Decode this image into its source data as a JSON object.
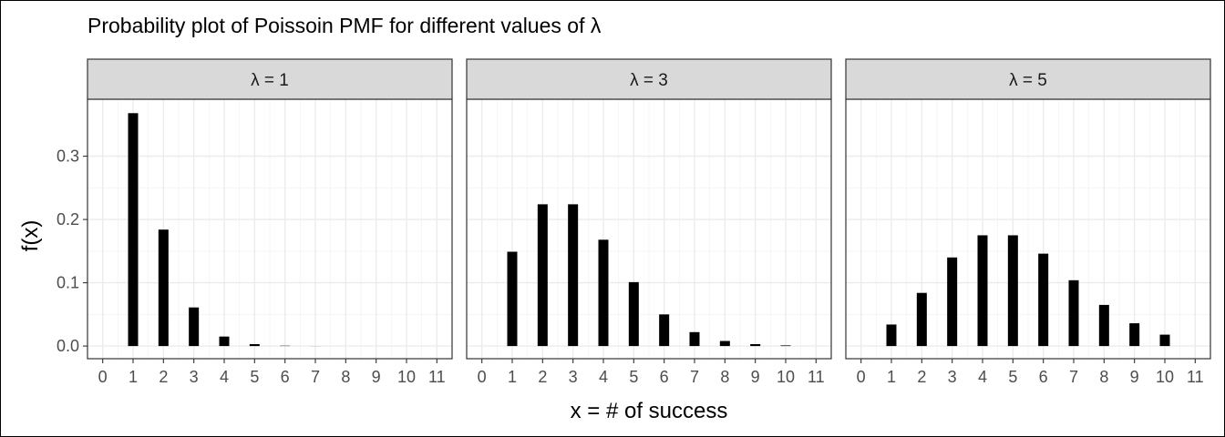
{
  "chart_data": {
    "type": "bar",
    "title": "Probability plot of Poissoin PMF for different values of λ",
    "xlabel": "x = # of success",
    "ylabel": "f(x)",
    "x": [
      0,
      1,
      2,
      3,
      4,
      5,
      6,
      7,
      8,
      9,
      10,
      11
    ],
    "xlim": [
      -0.5,
      11.5
    ],
    "ylim": [
      -0.02,
      0.39
    ],
    "yticks": [
      0.0,
      0.1,
      0.2,
      0.3
    ],
    "ytick_labels": [
      "0.0",
      "0.1",
      "0.2",
      "0.3"
    ],
    "grid": true,
    "colors": {
      "bar": "#000000",
      "strip_fill": "#d9d9d9",
      "panel_border": "#333333",
      "grid_major": "#ebebeb",
      "grid_minor": "#f5f5f5",
      "tick_label": "#4d4d4d"
    },
    "panels": [
      {
        "strip_label": "λ = 1",
        "x": [
          1,
          2,
          3,
          4,
          5,
          6,
          7,
          8,
          9,
          10
        ],
        "values": [
          0.368,
          0.184,
          0.061,
          0.015,
          0.003,
          0.0005,
          0.0001,
          0.0,
          0.0,
          0.0
        ]
      },
      {
        "strip_label": "λ = 3",
        "x": [
          1,
          2,
          3,
          4,
          5,
          6,
          7,
          8,
          9,
          10
        ],
        "values": [
          0.149,
          0.224,
          0.224,
          0.168,
          0.101,
          0.05,
          0.022,
          0.008,
          0.003,
          0.001
        ]
      },
      {
        "strip_label": "λ = 5",
        "x": [
          1,
          2,
          3,
          4,
          5,
          6,
          7,
          8,
          9,
          10
        ],
        "values": [
          0.034,
          0.084,
          0.14,
          0.175,
          0.175,
          0.146,
          0.104,
          0.065,
          0.036,
          0.018
        ]
      }
    ]
  }
}
